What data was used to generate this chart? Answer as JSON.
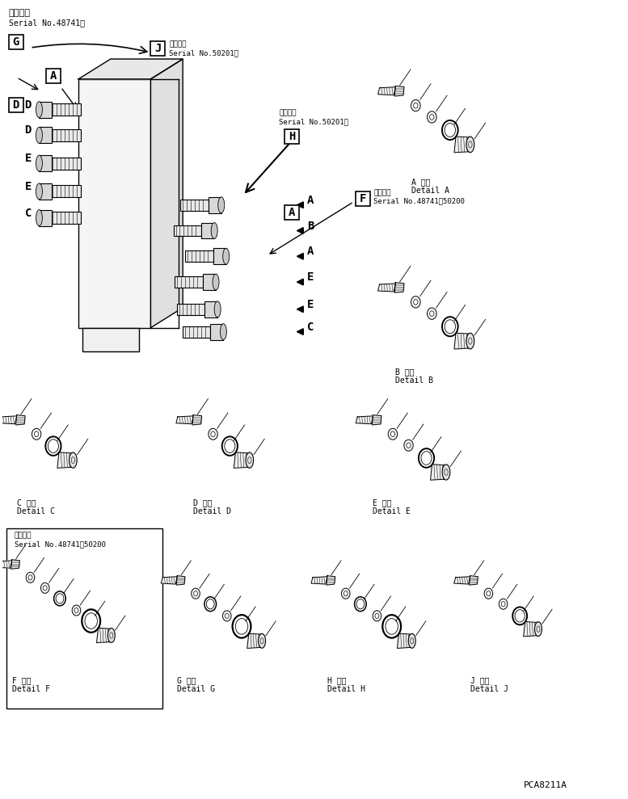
{
  "background_color": "#ffffff",
  "line_color": "#000000",
  "part_number": "PCA8211A",
  "header_text_1": "適用号機",
  "header_text_2": "Serial No.48741～",
  "label_J_text_1": "適用号機",
  "label_J_text_2": "Serial No.50201～",
  "label_H_text_1": "適用号機",
  "label_H_text_2": "Serial No.50201～",
  "label_F_text_1": "適用号機",
  "label_F_text_2": "Serial No.48741～50200",
  "box_F_serial_1": "適用号機",
  "box_F_serial_2": "Serial No.48741～50200",
  "detail_A_jp": "A 詳細",
  "detail_A_en": "Detail A",
  "detail_B_jp": "B 詳細",
  "detail_B_en": "Detail B",
  "detail_C_jp": "C 詳細",
  "detail_C_en": "Detail C",
  "detail_D_jp": "D 詳細",
  "detail_D_en": "Detail D",
  "detail_E_jp": "E 詳細",
  "detail_E_en": "Detail E",
  "detail_F_jp": "F 詳細",
  "detail_F_en": "Detail F",
  "detail_G_jp": "G 詳細",
  "detail_G_en": "Detail G",
  "detail_H_jp": "H 詳細",
  "detail_H_en": "Detail H",
  "detail_J_jp": "J 詳細",
  "detail_J_en": "Detail J",
  "left_labels": [
    "D",
    "D",
    "E",
    "E",
    "C"
  ],
  "right_labels": [
    "A",
    "B",
    "A",
    "E",
    "E",
    "C"
  ]
}
